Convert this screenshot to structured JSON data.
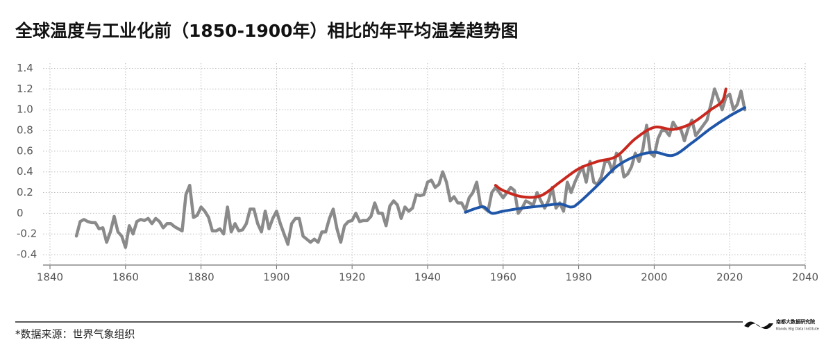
{
  "chart_data": {
    "type": "line",
    "title": "全球温度与工业化前（1850-1900年）相比的年平均温差趋势图",
    "source": "*数据来源：世界气象组织",
    "logo_text": "南都大数据研究院",
    "logo_subtext": "Nandu Big Data Institute",
    "xlim": [
      1840,
      2040
    ],
    "xticks": [
      1840,
      1860,
      1880,
      1900,
      1920,
      1940,
      1960,
      1980,
      2000,
      2020,
      2040
    ],
    "ylim": [
      -0.5,
      1.45
    ],
    "yticks": [
      -0.4,
      -0.2,
      0,
      0.2,
      0.4,
      0.6,
      {
        "value": 0.8,
        "label": "0.8"
      },
      {
        "value": 1,
        "label": "1.0"
      },
      1.2,
      1.4
    ],
    "grid": true,
    "series": [
      {
        "color": "#8a8a8a",
        "x": [
          1847,
          1848,
          1849,
          1850,
          1851,
          1852,
          1853,
          1854,
          1855,
          1856,
          1857,
          1858,
          1859,
          1860,
          1861,
          1862,
          1863,
          1864,
          1865,
          1866,
          1867,
          1868,
          1869,
          1870,
          1871,
          1872,
          1873,
          1874,
          1875,
          1876,
          1877,
          1878,
          1879,
          1880,
          1881,
          1882,
          1883,
          1884,
          1885,
          1886,
          1887,
          1888,
          1889,
          1890,
          1891,
          1892,
          1893,
          1894,
          1895,
          1896,
          1897,
          1898,
          1899,
          1900,
          1901,
          1902,
          1903,
          1904,
          1905,
          1906,
          1907,
          1908,
          1909,
          1910,
          1911,
          1912,
          1913,
          1914,
          1915,
          1916,
          1917,
          1918,
          1919,
          1920,
          1921,
          1922,
          1923,
          1924,
          1925,
          1926,
          1927,
          1928,
          1929,
          1930,
          1931,
          1932,
          1933,
          1934,
          1935,
          1936,
          1937,
          1938,
          1939,
          1940,
          1941,
          1942,
          1943,
          1944,
          1945,
          1946,
          1947,
          1948,
          1949,
          1950,
          1951,
          1952,
          1953,
          1954,
          1955,
          1956,
          1957,
          1958,
          1959,
          1960,
          1961,
          1962,
          1963,
          1964,
          1965,
          1966,
          1967,
          1968,
          1969,
          1970,
          1971,
          1972,
          1973,
          1974,
          1975,
          1976,
          1977,
          1978,
          1979,
          1980,
          1981,
          1982,
          1983,
          1984,
          1985,
          1986,
          1987,
          1988,
          1989,
          1990,
          1991,
          1992,
          1993,
          1994,
          1995,
          1996,
          1997,
          1998,
          1999,
          2000,
          2001,
          2002,
          2003,
          2004,
          2005,
          2006,
          2007,
          2008,
          2009,
          2010,
          2011,
          2012,
          2013,
          2014,
          2015,
          2016,
          2017,
          2018,
          2019,
          2020,
          2021,
          2022,
          2023,
          2024
        ],
        "values": [
          -0.22,
          -0.08,
          -0.06,
          -0.08,
          -0.09,
          -0.09,
          -0.15,
          -0.14,
          -0.28,
          -0.18,
          -0.03,
          -0.18,
          -0.22,
          -0.33,
          -0.12,
          -0.2,
          -0.08,
          -0.06,
          -0.07,
          -0.05,
          -0.1,
          -0.05,
          -0.08,
          -0.14,
          -0.1,
          -0.1,
          -0.13,
          -0.15,
          -0.17,
          0.18,
          0.27,
          -0.04,
          -0.02,
          0.06,
          0.02,
          -0.04,
          -0.17,
          -0.17,
          -0.15,
          -0.2,
          0.06,
          -0.18,
          -0.1,
          -0.17,
          -0.16,
          -0.1,
          0.04,
          0.04,
          -0.1,
          -0.18,
          0.02,
          -0.15,
          -0.05,
          0.02,
          -0.1,
          -0.2,
          -0.3,
          -0.1,
          -0.05,
          -0.05,
          -0.22,
          -0.25,
          -0.28,
          -0.25,
          -0.28,
          -0.18,
          -0.18,
          -0.05,
          0.04,
          -0.15,
          -0.28,
          -0.12,
          -0.08,
          -0.07,
          0.0,
          -0.08,
          -0.07,
          -0.07,
          -0.03,
          0.1,
          0.0,
          0.0,
          -0.12,
          0.07,
          0.12,
          0.08,
          -0.05,
          0.06,
          0.02,
          0.05,
          0.18,
          0.17,
          0.18,
          0.3,
          0.32,
          0.25,
          0.28,
          0.4,
          0.3,
          0.12,
          0.16,
          0.1,
          0.1,
          0.03,
          0.15,
          0.2,
          0.3,
          0.08,
          0.05,
          0.02,
          0.2,
          0.25,
          0.2,
          0.15,
          0.2,
          0.25,
          0.22,
          0.0,
          0.05,
          0.12,
          0.1,
          0.08,
          0.2,
          0.12,
          0.05,
          0.12,
          0.25,
          0.05,
          0.1,
          0.02,
          0.3,
          0.2,
          0.3,
          0.38,
          0.45,
          0.3,
          0.5,
          0.3,
          0.28,
          0.35,
          0.5,
          0.5,
          0.4,
          0.58,
          0.55,
          0.35,
          0.38,
          0.45,
          0.58,
          0.5,
          0.62,
          0.85,
          0.58,
          0.55,
          0.72,
          0.8,
          0.8,
          0.75,
          0.88,
          0.82,
          0.82,
          0.7,
          0.82,
          0.9,
          0.75,
          0.8,
          0.85,
          0.9,
          1.05,
          1.2,
          1.1,
          1.0,
          1.12,
          1.15,
          1.0,
          1.05,
          1.18,
          1.0
        ]
      },
      {
        "color": "#c8281e",
        "x": [
          1958,
          1960,
          1965,
          1970,
          1975,
          1980,
          1985,
          1990,
          1995,
          2000,
          2005,
          2010,
          2015,
          2018,
          2019
        ],
        "values": [
          0.27,
          0.22,
          0.16,
          0.17,
          0.3,
          0.43,
          0.5,
          0.55,
          0.72,
          0.83,
          0.81,
          0.87,
          1.0,
          1.08,
          1.2
        ]
      },
      {
        "color": "#1f56a8",
        "x": [
          1950,
          1953,
          1955,
          1957,
          1960,
          1965,
          1970,
          1975,
          1978,
          1980,
          1985,
          1990,
          1995,
          2000,
          2005,
          2010,
          2015,
          2020,
          2024
        ],
        "values": [
          0.01,
          0.05,
          0.06,
          0.0,
          0.02,
          0.05,
          0.07,
          0.09,
          0.06,
          0.1,
          0.27,
          0.45,
          0.55,
          0.59,
          0.56,
          0.68,
          0.82,
          0.94,
          1.02
        ]
      }
    ]
  }
}
